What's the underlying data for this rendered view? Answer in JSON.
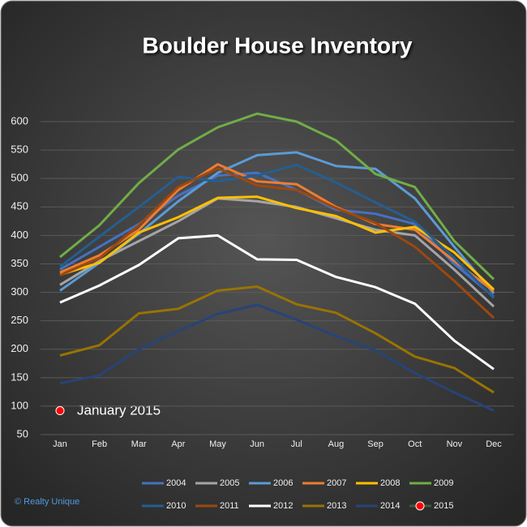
{
  "chart_data": {
    "type": "line",
    "title": "Boulder House Inventory",
    "categories": [
      "Jan",
      "Feb",
      "Mar",
      "Apr",
      "May",
      "Jun",
      "Jul",
      "Aug",
      "Sep",
      "Oct",
      "Nov",
      "Dec"
    ],
    "ylim": [
      50,
      600
    ],
    "yticks": [
      50,
      100,
      150,
      200,
      250,
      300,
      350,
      400,
      450,
      500,
      550,
      600
    ],
    "grid": true,
    "annotation": "January 2015",
    "credit": "© Realty Unique",
    "series": [
      {
        "name": "2004",
        "color": "#4472c4",
        "values": [
          340,
          380,
          420,
          470,
          505,
          510,
          480,
          445,
          438,
          420,
          350,
          292
        ]
      },
      {
        "name": "2005",
        "color": "#a5a5a5",
        "values": [
          313,
          355,
          390,
          425,
          465,
          460,
          450,
          430,
          410,
          400,
          340,
          275
        ]
      },
      {
        "name": "2006",
        "color": "#5b9bd5",
        "values": [
          303,
          352,
          403,
          460,
          510,
          541,
          546,
          522,
          517,
          465,
          380,
          298
        ]
      },
      {
        "name": "2007",
        "color": "#ed7d31",
        "values": [
          335,
          365,
          410,
          480,
          525,
          495,
          490,
          450,
          420,
          410,
          355,
          302
        ]
      },
      {
        "name": "2008",
        "color": "#ffc000",
        "values": [
          331,
          352,
          405,
          432,
          466,
          468,
          448,
          434,
          405,
          415,
          370,
          305
        ]
      },
      {
        "name": "2009",
        "color": "#70ad47",
        "values": [
          362,
          418,
          492,
          551,
          590,
          614,
          600,
          567,
          508,
          485,
          390,
          323
        ]
      },
      {
        "name": "2010",
        "color": "#255e91",
        "values": [
          345,
          398,
          450,
          503,
          495,
          505,
          524,
          493,
          458,
          424,
          360,
          290
        ]
      },
      {
        "name": "2011",
        "color": "#9e480e",
        "values": [
          330,
          360,
          418,
          485,
          518,
          488,
          480,
          448,
          422,
          380,
          320,
          255
        ]
      },
      {
        "name": "2012",
        "color": "#ffffff",
        "values": [
          282,
          312,
          348,
          395,
          400,
          358,
          357,
          327,
          309,
          280,
          215,
          165
        ]
      },
      {
        "name": "2013",
        "color": "#997300",
        "values": [
          189,
          207,
          263,
          271,
          303,
          310,
          279,
          264,
          228,
          187,
          167,
          124
        ]
      },
      {
        "name": "2014",
        "color": "#264478",
        "values": [
          140,
          154,
          200,
          232,
          262,
          278,
          252,
          223,
          198,
          158,
          124,
          92
        ]
      },
      {
        "name": "2015",
        "color": "#ff0000",
        "values": [
          92,
          null,
          null,
          null,
          null,
          null,
          null,
          null,
          null,
          null,
          null,
          null
        ]
      }
    ]
  }
}
